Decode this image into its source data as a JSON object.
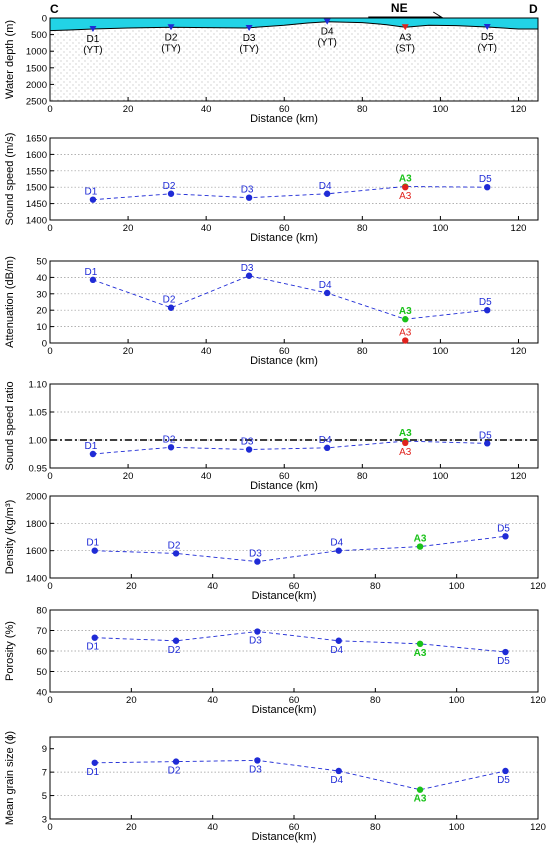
{
  "colors": {
    "blue": "#1f2bd6",
    "green": "#19c219",
    "red": "#e0221d",
    "water": "#22d3e6",
    "sediment": "#aaaaaa"
  },
  "chart_data": [
    {
      "type": "area",
      "id": "bathymetry",
      "xlabel": "Distance (km)",
      "ylabel": "Water depth (m)",
      "xlim": [
        0,
        125
      ],
      "ylim": [
        2500,
        0
      ],
      "xticks": [
        0,
        20,
        40,
        60,
        80,
        100,
        120
      ],
      "yticks": [
        0,
        500,
        1000,
        1500,
        2000,
        2500
      ],
      "left_label": "C",
      "right_label": "D",
      "direction_label": "NE",
      "seafloor": {
        "x": [
          0,
          5,
          11,
          20,
          31,
          40,
          50,
          60,
          66,
          71,
          80,
          86,
          91,
          97,
          104,
          112,
          120,
          125
        ],
        "y": [
          380,
          360,
          330,
          300,
          280,
          290,
          300,
          220,
          150,
          110,
          140,
          200,
          280,
          220,
          230,
          270,
          330,
          330
        ]
      },
      "stations": [
        {
          "name": "D1",
          "type": "(YT)",
          "x": 11,
          "y": 330,
          "color": "blue"
        },
        {
          "name": "D2",
          "type": "(TY)",
          "x": 31,
          "y": 280,
          "color": "blue"
        },
        {
          "name": "D3",
          "type": "(TY)",
          "x": 51,
          "y": 300,
          "color": "blue"
        },
        {
          "name": "D4",
          "type": "(YT)",
          "x": 71,
          "y": 110,
          "color": "blue"
        },
        {
          "name": "A3",
          "type": "(ST)",
          "x": 91,
          "y": 280,
          "color": "red"
        },
        {
          "name": "D5",
          "type": "(YT)",
          "x": 112,
          "y": 270,
          "color": "blue"
        }
      ]
    },
    {
      "type": "scatter",
      "id": "sound-speed",
      "xlabel": "Distance (km)",
      "ylabel": "Sound speed (m/s)",
      "xlim": [
        0,
        125
      ],
      "ylim": [
        1400,
        1650
      ],
      "xticks": [
        0,
        20,
        40,
        60,
        80,
        100,
        120
      ],
      "yticks": [
        1400,
        1450,
        1500,
        1550,
        1600,
        1650
      ],
      "line": {
        "x": [
          11,
          31,
          51,
          71,
          91,
          112
        ],
        "y": [
          1462,
          1480,
          1468,
          1480,
          1502,
          1500
        ]
      },
      "points": [
        {
          "label": "D1",
          "x": 11,
          "y": 1462,
          "color": "blue",
          "pos": "above"
        },
        {
          "label": "D2",
          "x": 31,
          "y": 1480,
          "color": "blue",
          "pos": "above"
        },
        {
          "label": "D3",
          "x": 51,
          "y": 1468,
          "color": "blue",
          "pos": "above"
        },
        {
          "label": "D4",
          "x": 71,
          "y": 1480,
          "color": "blue",
          "pos": "above"
        },
        {
          "label": "A3",
          "x": 91,
          "y": 1502,
          "color": "green",
          "pos": "above"
        },
        {
          "label": "A3",
          "x": 91,
          "y": 1500,
          "color": "red",
          "pos": "below"
        },
        {
          "label": "D5",
          "x": 112,
          "y": 1500,
          "color": "blue",
          "pos": "above"
        }
      ]
    },
    {
      "type": "scatter",
      "id": "attenuation",
      "xlabel": "Distance (km)",
      "ylabel": "Attenuation (dB/m)",
      "xlim": [
        0,
        125
      ],
      "ylim": [
        0,
        50
      ],
      "xticks": [
        0,
        20,
        40,
        60,
        80,
        100,
        120
      ],
      "yticks": [
        0,
        10,
        20,
        30,
        40,
        50
      ],
      "line": {
        "x": [
          11,
          31,
          51,
          71,
          91,
          112
        ],
        "y": [
          38.5,
          21.5,
          41,
          30.5,
          14.5,
          20
        ]
      },
      "points": [
        {
          "label": "D1",
          "x": 11,
          "y": 38.5,
          "color": "blue",
          "pos": "above"
        },
        {
          "label": "D2",
          "x": 31,
          "y": 21.5,
          "color": "blue",
          "pos": "above"
        },
        {
          "label": "D3",
          "x": 51,
          "y": 41,
          "color": "blue",
          "pos": "above"
        },
        {
          "label": "D4",
          "x": 71,
          "y": 30.5,
          "color": "blue",
          "pos": "above"
        },
        {
          "label": "A3",
          "x": 91,
          "y": 14.5,
          "color": "green",
          "pos": "above"
        },
        {
          "label": "A3",
          "x": 91,
          "y": 1.5,
          "color": "red",
          "pos": "above"
        },
        {
          "label": "D5",
          "x": 112,
          "y": 20,
          "color": "blue",
          "pos": "above"
        }
      ]
    },
    {
      "type": "scatter",
      "id": "sound-speed-ratio",
      "xlabel": "Distance (km)",
      "ylabel": "Sound speed ratio",
      "xlim": [
        0,
        125
      ],
      "ylim": [
        0.95,
        1.1
      ],
      "xticks": [
        0,
        20,
        40,
        60,
        80,
        100,
        120
      ],
      "yticks": [
        "0.95",
        "1.00",
        "1.05",
        "1.10"
      ],
      "yticks_values": [
        0.95,
        1.0,
        1.05,
        1.1
      ],
      "reference_line": 1.0,
      "line": {
        "x": [
          11,
          31,
          51,
          71,
          91,
          112
        ],
        "y": [
          0.975,
          0.987,
          0.983,
          0.986,
          0.998,
          0.994
        ]
      },
      "points": [
        {
          "label": "D1",
          "x": 11,
          "y": 0.975,
          "color": "blue",
          "pos": "above"
        },
        {
          "label": "D2",
          "x": 31,
          "y": 0.987,
          "color": "blue",
          "pos": "above"
        },
        {
          "label": "D3",
          "x": 51,
          "y": 0.983,
          "color": "blue",
          "pos": "above"
        },
        {
          "label": "D4",
          "x": 71,
          "y": 0.986,
          "color": "blue",
          "pos": "above"
        },
        {
          "label": "A3",
          "x": 91,
          "y": 0.998,
          "color": "green",
          "pos": "above"
        },
        {
          "label": "A3",
          "x": 91,
          "y": 0.995,
          "color": "red",
          "pos": "below"
        },
        {
          "label": "D5",
          "x": 112,
          "y": 0.994,
          "color": "blue",
          "pos": "above"
        }
      ]
    },
    {
      "type": "scatter",
      "id": "density",
      "xlabel": "Distance(km)",
      "ylabel": "Density (kg/m³)",
      "xlim": [
        0,
        120
      ],
      "ylim": [
        1400,
        2000
      ],
      "xticks": [
        0,
        20,
        40,
        60,
        80,
        100,
        120
      ],
      "yticks": [
        1400,
        1600,
        1800,
        2000
      ],
      "line": {
        "x": [
          11,
          31,
          51,
          71,
          91,
          112
        ],
        "y": [
          1600,
          1580,
          1520,
          1600,
          1630,
          1705
        ]
      },
      "points": [
        {
          "label": "D1",
          "x": 11,
          "y": 1600,
          "color": "blue",
          "pos": "above"
        },
        {
          "label": "D2",
          "x": 31,
          "y": 1580,
          "color": "blue",
          "pos": "above"
        },
        {
          "label": "D3",
          "x": 51,
          "y": 1520,
          "color": "blue",
          "pos": "above"
        },
        {
          "label": "D4",
          "x": 71,
          "y": 1600,
          "color": "blue",
          "pos": "above"
        },
        {
          "label": "A3",
          "x": 91,
          "y": 1630,
          "color": "green",
          "pos": "above"
        },
        {
          "label": "D5",
          "x": 112,
          "y": 1705,
          "color": "blue",
          "pos": "above"
        }
      ]
    },
    {
      "type": "scatter",
      "id": "porosity",
      "xlabel": "Distance(km)",
      "ylabel": "Porosity (%)",
      "xlim": [
        0,
        120
      ],
      "ylim": [
        40,
        80
      ],
      "xticks": [
        0,
        20,
        40,
        60,
        80,
        100,
        120
      ],
      "yticks": [
        40,
        50,
        60,
        70,
        80
      ],
      "line": {
        "x": [
          11,
          31,
          51,
          71,
          91,
          112
        ],
        "y": [
          66.5,
          65,
          69.5,
          65,
          63.5,
          59.5
        ]
      },
      "points": [
        {
          "label": "D1",
          "x": 11,
          "y": 66.5,
          "color": "blue",
          "pos": "below"
        },
        {
          "label": "D2",
          "x": 31,
          "y": 65,
          "color": "blue",
          "pos": "below"
        },
        {
          "label": "D3",
          "x": 51,
          "y": 69.5,
          "color": "blue",
          "pos": "below"
        },
        {
          "label": "D4",
          "x": 71,
          "y": 65,
          "color": "blue",
          "pos": "below"
        },
        {
          "label": "A3",
          "x": 91,
          "y": 63.5,
          "color": "green",
          "pos": "below"
        },
        {
          "label": "D5",
          "x": 112,
          "y": 59.5,
          "color": "blue",
          "pos": "below"
        }
      ]
    },
    {
      "type": "scatter",
      "id": "grain-size",
      "xlabel": "Distance(km)",
      "ylabel": "Mean grain size (ϕ)",
      "xlim": [
        0,
        120
      ],
      "ylim": [
        3,
        10
      ],
      "xticks": [
        0,
        20,
        40,
        60,
        80,
        100,
        120
      ],
      "yticks": [
        3,
        5,
        7,
        9
      ],
      "line": {
        "x": [
          11,
          31,
          51,
          71,
          91,
          112
        ],
        "y": [
          7.8,
          7.9,
          8.0,
          7.1,
          5.5,
          7.1
        ]
      },
      "points": [
        {
          "label": "D1",
          "x": 11,
          "y": 7.8,
          "color": "blue",
          "pos": "below"
        },
        {
          "label": "D2",
          "x": 31,
          "y": 7.9,
          "color": "blue",
          "pos": "below"
        },
        {
          "label": "D3",
          "x": 51,
          "y": 8.0,
          "color": "blue",
          "pos": "below"
        },
        {
          "label": "D4",
          "x": 71,
          "y": 7.1,
          "color": "blue",
          "pos": "below"
        },
        {
          "label": "A3",
          "x": 91,
          "y": 5.5,
          "color": "green",
          "pos": "below"
        },
        {
          "label": "D5",
          "x": 112,
          "y": 7.1,
          "color": "blue",
          "pos": "below"
        }
      ]
    }
  ]
}
